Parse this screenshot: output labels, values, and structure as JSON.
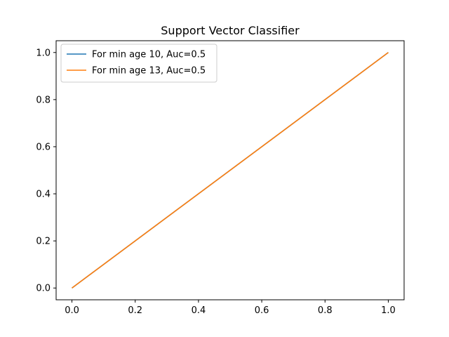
{
  "chart_data": {
    "type": "line",
    "title": "Support Vector Classifier",
    "xlabel": "",
    "ylabel": "",
    "xlim": [
      -0.05,
      1.05
    ],
    "ylim": [
      -0.05,
      1.05
    ],
    "xticks": [
      0.0,
      0.2,
      0.4,
      0.6,
      0.8,
      1.0
    ],
    "yticks": [
      0.0,
      0.2,
      0.4,
      0.6,
      0.8,
      1.0
    ],
    "xtick_labels": [
      "0.0",
      "0.2",
      "0.4",
      "0.6",
      "0.8",
      "1.0"
    ],
    "ytick_labels": [
      "0.0",
      "0.2",
      "0.4",
      "0.6",
      "0.8",
      "1.0"
    ],
    "grid": false,
    "legend_position": "upper left",
    "series": [
      {
        "name": "For min age 10, Auc=0.5",
        "color": "#1f77b4",
        "x": [
          0.0,
          1.0
        ],
        "y": [
          0.0,
          1.0
        ]
      },
      {
        "name": "For min age 13, Auc=0.5",
        "color": "#ff7f0e",
        "x": [
          0.0,
          1.0
        ],
        "y": [
          0.0,
          1.0
        ]
      }
    ]
  }
}
